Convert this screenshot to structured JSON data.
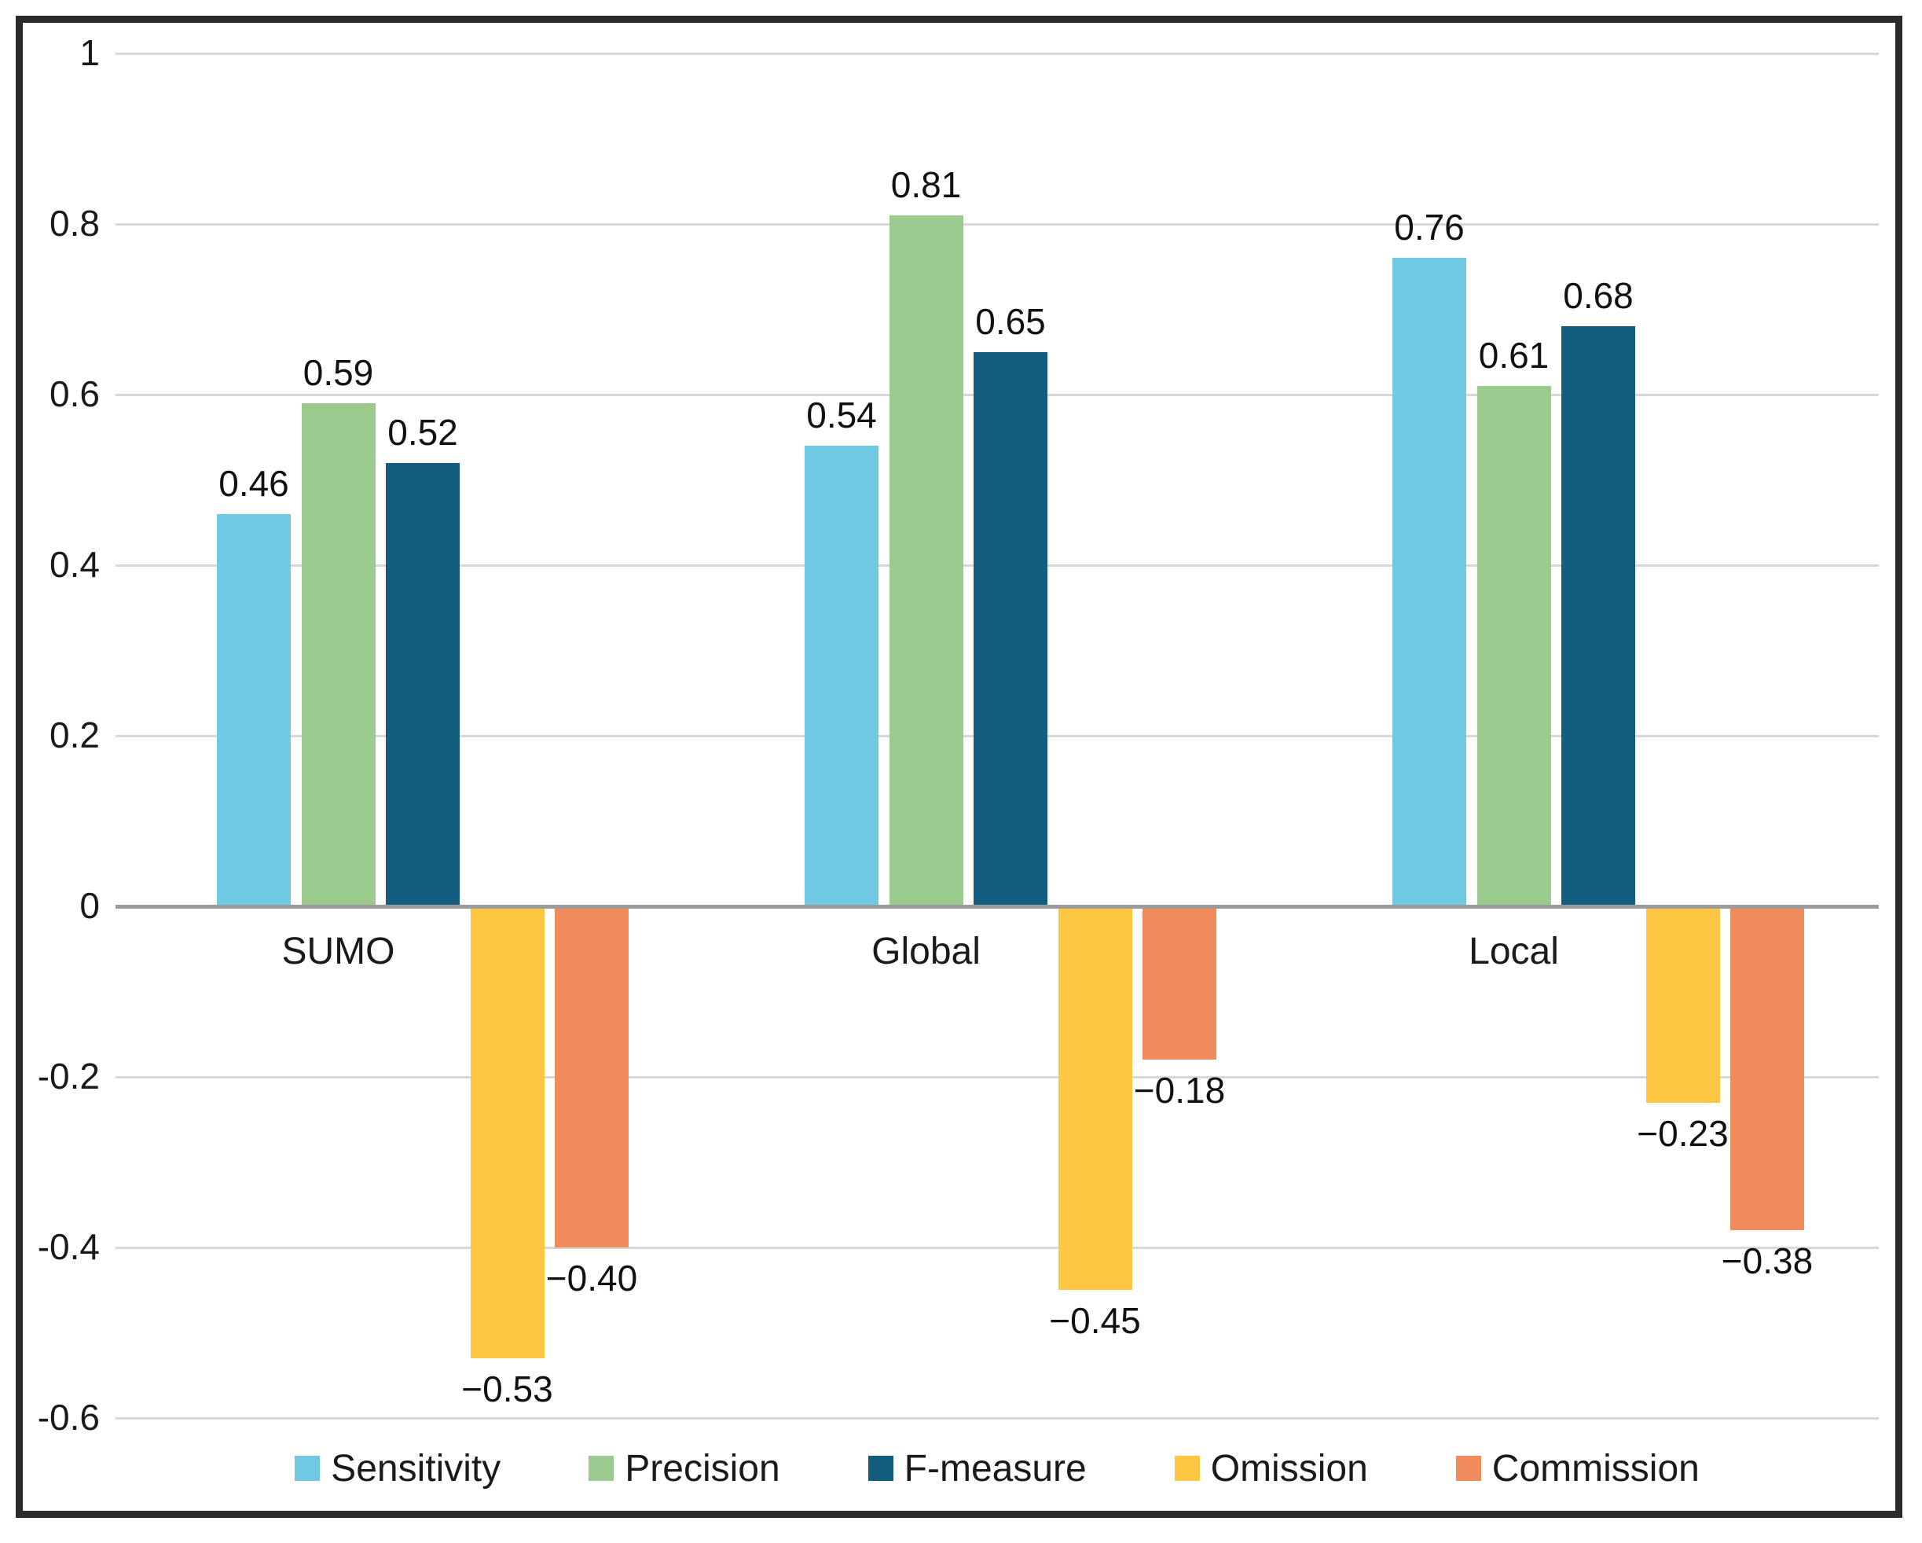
{
  "chart_data": {
    "type": "bar",
    "title": "",
    "xlabel": "",
    "ylabel": "",
    "categories": [
      "SUMO",
      "Global",
      "Local"
    ],
    "series": [
      {
        "name": "Sensitivity",
        "color": "#6FC9E2",
        "values": [
          0.46,
          0.54,
          0.76
        ]
      },
      {
        "name": "Precision",
        "color": "#9BCB8C",
        "values": [
          0.59,
          0.81,
          0.61
        ]
      },
      {
        "name": "F-measure",
        "color": "#135E7E",
        "values": [
          0.52,
          0.65,
          0.68
        ]
      },
      {
        "name": "Omission",
        "color": "#FDC643",
        "values": [
          -0.53,
          -0.45,
          -0.23
        ]
      },
      {
        "name": "Commission",
        "color": "#F28B5B",
        "values": [
          -0.4,
          -0.18,
          -0.38
        ]
      }
    ],
    "value_labels": {
      "SUMO": [
        "0.46",
        "0.59",
        "0.52",
        "−0.53",
        "−0.40"
      ],
      "Global": [
        "0.54",
        "0.81",
        "0.65",
        "−0.45",
        "−0.18"
      ],
      "Local": [
        "0.76",
        "0.61",
        "0.68",
        "−0.23",
        "−0.38"
      ]
    },
    "y_axis": {
      "min": -0.6,
      "max": 1.0,
      "tick_step": 0.2,
      "tick_values": [
        1,
        0.8,
        0.6,
        0.4,
        0.2,
        0,
        -0.2,
        -0.4,
        -0.6
      ],
      "tick_labels": [
        "1",
        "0.8",
        "0.6",
        "0.4",
        "0.2",
        "0",
        "-0.2",
        "-0.4",
        "-0.6"
      ]
    },
    "grid": true,
    "legend_position": "bottom",
    "legend_entries": [
      "Sensitivity",
      "Precision",
      "F-measure",
      "Omission",
      "Commission"
    ]
  },
  "colors": {
    "background": "#FFFFFF",
    "gridline": "#D8D8D8",
    "zero_line": "#9B9B9B",
    "border": "#2B2B2B",
    "text": "#1A1A1A"
  }
}
